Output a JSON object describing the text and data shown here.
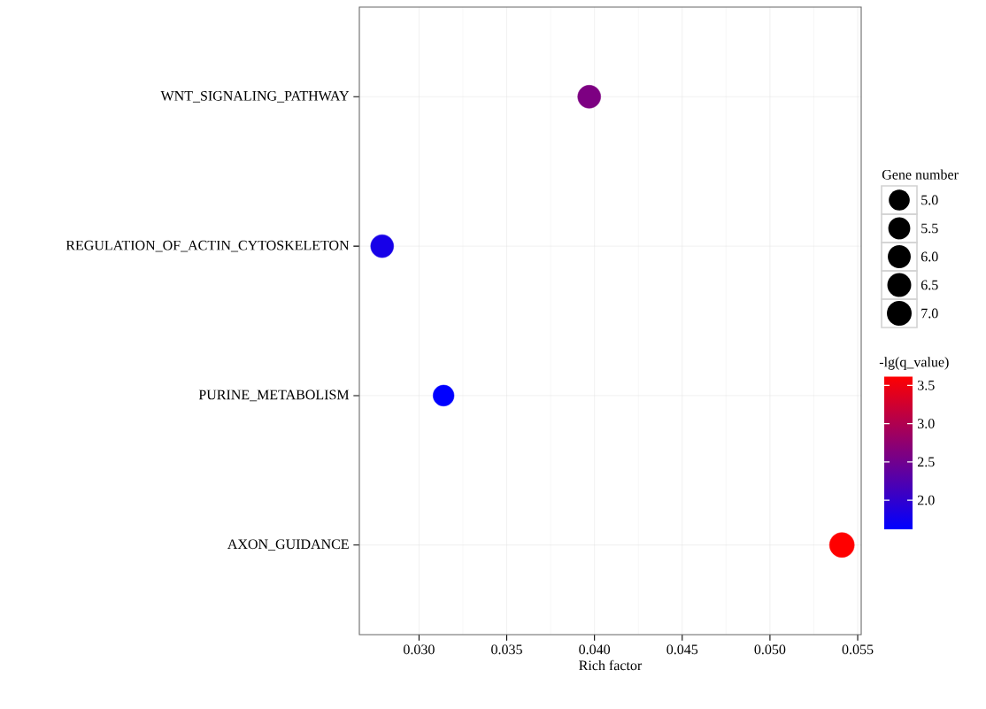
{
  "chart_data": {
    "type": "bubble",
    "orientation": "horizontal",
    "xlabel": "Rich factor",
    "legend_title": "Gene number",
    "clabel": "-lg(q_value)",
    "categories": [
      "WNT_SIGNALING_PATHWAY",
      "REGULATION_OF_ACTIN_CYTOSKELETON",
      "PURINE_METABOLISM",
      "AXON_GUIDANCE"
    ],
    "values": [
      0.0397,
      0.0279,
      0.0314,
      0.0541
    ],
    "sizes": [
      6.0,
      6.0,
      5.0,
      7.0
    ],
    "cvalues": [
      2.6,
      1.8,
      1.62,
      3.62
    ],
    "size_legend": [
      {
        "value": 5,
        "label": "5.0"
      },
      {
        "value": 5.5,
        "label": "5.5"
      },
      {
        "value": 6,
        "label": "6.0"
      },
      {
        "value": 6.5,
        "label": "6.5"
      },
      {
        "value": 7,
        "label": "7.0"
      }
    ],
    "clim": [
      1.62,
      3.62
    ],
    "cticks": [
      {
        "value": 2,
        "label": "2.0"
      },
      {
        "value": 2.5,
        "label": "2.5"
      },
      {
        "value": 3,
        "label": "3.0"
      },
      {
        "value": 3.5,
        "label": "3.5"
      }
    ],
    "xlim": [
      0.0266,
      0.0552
    ],
    "xticks": [
      {
        "value": 0.03,
        "label": "0.030"
      },
      {
        "value": 0.035,
        "label": "0.035"
      },
      {
        "value": 0.04,
        "label": "0.040"
      },
      {
        "value": 0.045,
        "label": "0.045"
      },
      {
        "value": 0.05,
        "label": "0.050"
      },
      {
        "value": 0.055,
        "label": "0.055"
      }
    ],
    "grid": true
  }
}
